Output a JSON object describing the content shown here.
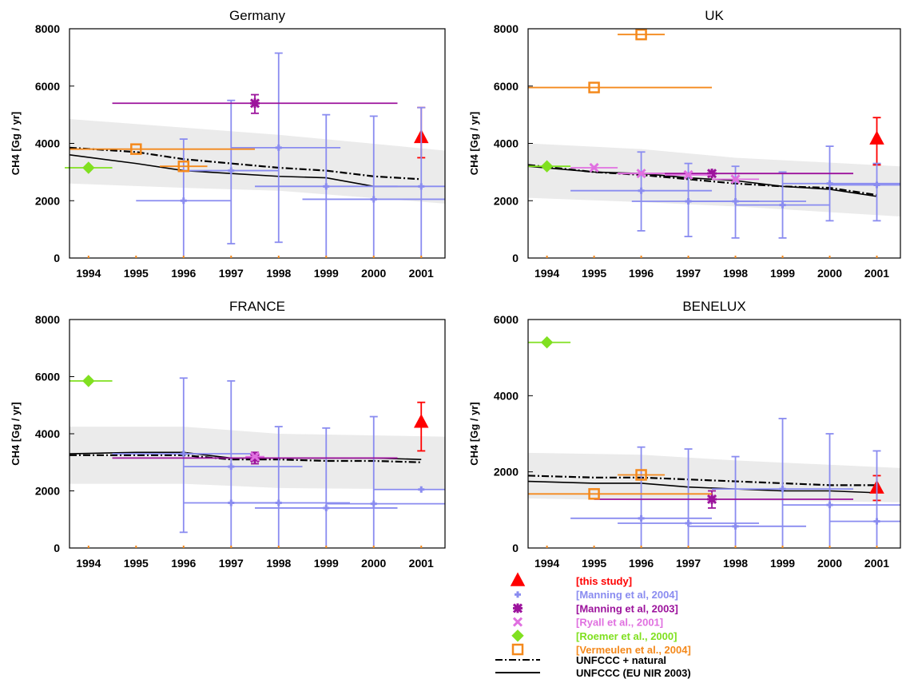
{
  "chart_data": [
    {
      "type": "scatter",
      "title": "Germany",
      "ylabel": "CH4 [Gg / yr]",
      "ylim": [
        0,
        8000
      ],
      "xlim": [
        1993.6,
        2001.5
      ],
      "x_ticks": [
        "1994",
        "1995",
        "1996",
        "1997",
        "1998",
        "1999",
        "2000",
        "2001"
      ],
      "y_ticks": [
        "0",
        "2000",
        "4000",
        "6000",
        "8000"
      ],
      "series": [
        {
          "key": "this_study",
          "points": [
            {
              "x": 2001,
              "y": 4200,
              "ylo": 3500,
              "yhi": 5250
            }
          ]
        },
        {
          "key": "manning_2004",
          "points": [
            {
              "x": 1996,
              "y": 2000,
              "xlo": 1995,
              "xhi": 1997,
              "ylo": 0,
              "yhi": 4150
            },
            {
              "x": 1997,
              "y": 3050,
              "xlo": 1996,
              "xhi": 1998,
              "ylo": 500,
              "yhi": 5500
            },
            {
              "x": 1998,
              "y": 3850,
              "xlo": 1997,
              "xhi": 1999.3,
              "ylo": 550,
              "yhi": 7150
            },
            {
              "x": 1999,
              "y": 2500,
              "xlo": 1997.5,
              "xhi": 2000.5,
              "ylo": 0,
              "yhi": 5000
            },
            {
              "x": 2000,
              "y": 2050,
              "xlo": 1998.5,
              "xhi": 2001.5,
              "ylo": 0,
              "yhi": 4950
            },
            {
              "x": 2001,
              "y": 2500,
              "xlo": 2000,
              "xhi": 2001.5,
              "ylo": 0,
              "yhi": 5250
            }
          ]
        },
        {
          "key": "manning_2003",
          "points": [
            {
              "x": 1997.5,
              "y": 5400,
              "xlo": 1994.5,
              "xhi": 2000.5,
              "ylo": 5050,
              "yhi": 5700
            }
          ]
        },
        {
          "key": "roemer_2000",
          "points": [
            {
              "x": 1994,
              "y": 3150,
              "xlo": 1993.5,
              "xhi": 1994.5
            }
          ]
        },
        {
          "key": "vermeulen_2004",
          "points": [
            {
              "x": 1995,
              "y": 3800,
              "xlo": 1993.6,
              "xhi": 1997.5
            },
            {
              "x": 1996,
              "y": 3200,
              "xlo": 1995.5,
              "xhi": 1996.5
            }
          ]
        }
      ],
      "unfccc_natural": [
        {
          "x": 1993.6,
          "y": 3850
        },
        {
          "x": 1995,
          "y": 3700
        },
        {
          "x": 1996,
          "y": 3450
        },
        {
          "x": 1997,
          "y": 3300
        },
        {
          "x": 1998,
          "y": 3150
        },
        {
          "x": 1999,
          "y": 3050
        },
        {
          "x": 2000,
          "y": 2850
        },
        {
          "x": 2001,
          "y": 2750
        }
      ],
      "unfccc_nir": [
        {
          "x": 1993.6,
          "y": 3600
        },
        {
          "x": 1995,
          "y": 3300
        },
        {
          "x": 1996,
          "y": 3050
        },
        {
          "x": 1997,
          "y": 2950
        },
        {
          "x": 1998,
          "y": 2850
        },
        {
          "x": 1999,
          "y": 2800
        },
        {
          "x": 2000,
          "y": 2500
        },
        {
          "x": 2001,
          "y": 2500
        }
      ],
      "band_upper": [
        {
          "x": 1993.6,
          "y": 4850
        },
        {
          "x": 1996,
          "y": 4550
        },
        {
          "x": 1998,
          "y": 4300
        },
        {
          "x": 2001.5,
          "y": 3750
        }
      ],
      "band_lower": [
        {
          "x": 1993.6,
          "y": 2600
        },
        {
          "x": 1996,
          "y": 2450
        },
        {
          "x": 1998,
          "y": 2350
        },
        {
          "x": 2001.5,
          "y": 1900
        }
      ]
    },
    {
      "type": "scatter",
      "title": "UK",
      "ylabel": "CH4 [Gg / yr]",
      "ylim": [
        0,
        8000
      ],
      "xlim": [
        1993.6,
        2001.5
      ],
      "x_ticks": [
        "1994",
        "1995",
        "1996",
        "1997",
        "1998",
        "1999",
        "2000",
        "2001"
      ],
      "y_ticks": [
        "0",
        "2000",
        "4000",
        "6000",
        "8000"
      ],
      "series": [
        {
          "key": "this_study",
          "points": [
            {
              "x": 2001,
              "y": 4150,
              "ylo": 3250,
              "yhi": 4900
            }
          ]
        },
        {
          "key": "manning_2004",
          "points": [
            {
              "x": 1996,
              "y": 2350,
              "xlo": 1994.5,
              "xhi": 1997.5,
              "ylo": 950,
              "yhi": 3700
            },
            {
              "x": 1997,
              "y": 1980,
              "xlo": 1995.8,
              "xhi": 1998.5,
              "ylo": 750,
              "yhi": 3300
            },
            {
              "x": 1998,
              "y": 1980,
              "xlo": 1997,
              "xhi": 1999.5,
              "ylo": 700,
              "yhi": 3200
            },
            {
              "x": 1999,
              "y": 1850,
              "xlo": 1998,
              "xhi": 2000,
              "ylo": 700,
              "yhi": 3000
            },
            {
              "x": 2000,
              "y": 2600,
              "xlo": 1999,
              "xhi": 2001.5,
              "ylo": 1300,
              "yhi": 3900
            },
            {
              "x": 2001,
              "y": 2550,
              "xlo": 2000,
              "xhi": 2001.5,
              "ylo": 1300,
              "yhi": 3300
            }
          ]
        },
        {
          "key": "manning_2003",
          "points": [
            {
              "x": 1997.5,
              "y": 2950,
              "xlo": 1995.5,
              "xhi": 2000.5
            }
          ]
        },
        {
          "key": "ryall_2001",
          "points": [
            {
              "x": 1995,
              "y": 3150,
              "xlo": 1994.5,
              "xhi": 1995.5
            },
            {
              "x": 1996,
              "y": 2950,
              "xlo": 1995.5,
              "xhi": 1996.5
            },
            {
              "x": 1997,
              "y": 2900,
              "xlo": 1996.5,
              "xhi": 1997.5
            },
            {
              "x": 1998,
              "y": 2750,
              "xlo": 1997.5,
              "xhi": 1998.5
            }
          ]
        },
        {
          "key": "roemer_2000",
          "points": [
            {
              "x": 1994,
              "y": 3200,
              "xlo": 1993.6,
              "xhi": 1994.5
            }
          ]
        },
        {
          "key": "vermeulen_2004",
          "points": [
            {
              "x": 1995,
              "y": 5950,
              "xlo": 1993.6,
              "xhi": 1997.5
            },
            {
              "x": 1996,
              "y": 7800,
              "xlo": 1995.5,
              "xhi": 1996.5
            }
          ]
        }
      ],
      "unfccc_natural": [
        {
          "x": 1993.6,
          "y": 3250
        },
        {
          "x": 1995,
          "y": 3000
        },
        {
          "x": 1996,
          "y": 2900
        },
        {
          "x": 1997,
          "y": 2750
        },
        {
          "x": 1998,
          "y": 2600
        },
        {
          "x": 1999,
          "y": 2500
        },
        {
          "x": 2000,
          "y": 2450
        },
        {
          "x": 2001,
          "y": 2200
        }
      ],
      "unfccc_nir": [
        {
          "x": 1993.6,
          "y": 3200
        },
        {
          "x": 1995,
          "y": 3000
        },
        {
          "x": 1996,
          "y": 2950
        },
        {
          "x": 1997,
          "y": 2800
        },
        {
          "x": 1998,
          "y": 2700
        },
        {
          "x": 1999,
          "y": 2500
        },
        {
          "x": 2000,
          "y": 2400
        },
        {
          "x": 2001,
          "y": 2150
        }
      ],
      "band_upper": [
        {
          "x": 1993.6,
          "y": 4000
        },
        {
          "x": 1996,
          "y": 3800
        },
        {
          "x": 1998,
          "y": 3500
        },
        {
          "x": 2001.5,
          "y": 3200
        }
      ],
      "band_lower": [
        {
          "x": 1993.6,
          "y": 2100
        },
        {
          "x": 1996,
          "y": 1950
        },
        {
          "x": 1998,
          "y": 1800
        },
        {
          "x": 2001.5,
          "y": 1450
        }
      ]
    },
    {
      "type": "scatter",
      "title": "FRANCE",
      "ylabel": "CH4 [Gg / yr]",
      "ylim": [
        0,
        8000
      ],
      "xlim": [
        1993.6,
        2001.5
      ],
      "x_ticks": [
        "1994",
        "1995",
        "1996",
        "1997",
        "1998",
        "1999",
        "2000",
        "2001"
      ],
      "y_ticks": [
        "0",
        "2000",
        "4000",
        "6000",
        "8000"
      ],
      "series": [
        {
          "key": "this_study",
          "points": [
            {
              "x": 2001,
              "y": 4400,
              "ylo": 3400,
              "yhi": 5100
            }
          ]
        },
        {
          "key": "manning_2004",
          "points": [
            {
              "x": 1996,
              "y": 3300,
              "xlo": 1994.5,
              "xhi": 1997.5,
              "ylo": 550,
              "yhi": 5950
            },
            {
              "x": 1997,
              "y": 2850,
              "xlo": 1996,
              "xhi": 1998.5,
              "ylo": 0,
              "yhi": 5850
            },
            {
              "x": 1997,
              "y": 1580,
              "xlo": 1996,
              "xhi": 1998,
              "ylo": 0,
              "yhi": 0
            },
            {
              "x": 1998,
              "y": 1580,
              "xlo": 1997,
              "xhi": 1999.5,
              "ylo": 0,
              "yhi": 4250
            },
            {
              "x": 1999,
              "y": 1400,
              "xlo": 1997.5,
              "xhi": 2000.5,
              "ylo": 0,
              "yhi": 4200
            },
            {
              "x": 2000,
              "y": 1550,
              "xlo": 1999,
              "xhi": 2001.5,
              "ylo": 0,
              "yhi": 4600
            },
            {
              "x": 2001,
              "y": 2050,
              "xlo": 2000,
              "xhi": 2001.5,
              "ylo": 0,
              "yhi": 0
            }
          ]
        },
        {
          "key": "manning_2003",
          "points": [
            {
              "x": 1997.5,
              "y": 3150,
              "xlo": 1994.5,
              "xhi": 2000.5,
              "ylo": 2950,
              "yhi": 3350
            }
          ]
        },
        {
          "key": "ryall_2001",
          "points": [
            {
              "x": 1997.5,
              "y": 3200,
              "xlo": 1997.3,
              "xhi": 1997.7
            }
          ]
        },
        {
          "key": "roemer_2000",
          "points": [
            {
              "x": 1994,
              "y": 5850,
              "xlo": 1993.6,
              "xhi": 1994.5
            }
          ]
        }
      ],
      "unfccc_natural": [
        {
          "x": 1993.6,
          "y": 3250
        },
        {
          "x": 1995,
          "y": 3250
        },
        {
          "x": 1996,
          "y": 3250
        },
        {
          "x": 1997,
          "y": 3100
        },
        {
          "x": 1998,
          "y": 3100
        },
        {
          "x": 1999,
          "y": 3050
        },
        {
          "x": 2000,
          "y": 3050
        },
        {
          "x": 2001,
          "y": 3000
        }
      ],
      "unfccc_nir": [
        {
          "x": 1993.6,
          "y": 3300
        },
        {
          "x": 1995,
          "y": 3350
        },
        {
          "x": 1996,
          "y": 3350
        },
        {
          "x": 1997,
          "y": 3150
        },
        {
          "x": 1998,
          "y": 3150
        },
        {
          "x": 1999,
          "y": 3150
        },
        {
          "x": 2000,
          "y": 3150
        },
        {
          "x": 2001,
          "y": 3100
        }
      ],
      "band_upper": [
        {
          "x": 1993.6,
          "y": 4250
        },
        {
          "x": 1996,
          "y": 4250
        },
        {
          "x": 1998,
          "y": 4000
        },
        {
          "x": 2001.5,
          "y": 3900
        }
      ],
      "band_lower": [
        {
          "x": 1993.6,
          "y": 2250
        },
        {
          "x": 1996,
          "y": 2250
        },
        {
          "x": 1998,
          "y": 2100
        },
        {
          "x": 2001.5,
          "y": 2050
        }
      ]
    },
    {
      "type": "scatter",
      "title": "BENELUX",
      "ylabel": "CH4 [Gg / yr]",
      "ylim": [
        0,
        6000
      ],
      "xlim": [
        1993.6,
        2001.5
      ],
      "x_ticks": [
        "1994",
        "1995",
        "1996",
        "1997",
        "1998",
        "1999",
        "2000",
        "2001"
      ],
      "y_ticks": [
        "0",
        "2000",
        "4000",
        "6000"
      ],
      "series": [
        {
          "key": "this_study",
          "points": [
            {
              "x": 2001,
              "y": 1570,
              "ylo": 1250,
              "yhi": 1900
            }
          ]
        },
        {
          "key": "manning_2004",
          "points": [
            {
              "x": 1996,
              "y": 780,
              "xlo": 1994.5,
              "xhi": 1997.5,
              "ylo": 0,
              "yhi": 2650
            },
            {
              "x": 1997,
              "y": 650,
              "xlo": 1995.5,
              "xhi": 1998.5,
              "ylo": 0,
              "yhi": 2600
            },
            {
              "x": 1998,
              "y": 570,
              "xlo": 1997,
              "xhi": 1999.5,
              "ylo": 0,
              "yhi": 2400
            },
            {
              "x": 1999,
              "y": 1550,
              "xlo": 1997.5,
              "xhi": 2000.5,
              "ylo": 0,
              "yhi": 3400
            },
            {
              "x": 2000,
              "y": 1130,
              "xlo": 1999,
              "xhi": 2001.5,
              "ylo": 0,
              "yhi": 3000
            },
            {
              "x": 2001,
              "y": 700,
              "xlo": 2000,
              "xhi": 2001.5,
              "ylo": 0,
              "yhi": 2550
            }
          ]
        },
        {
          "key": "manning_2003",
          "points": [
            {
              "x": 1997.5,
              "y": 1280,
              "xlo": 1995,
              "xhi": 2000.5,
              "ylo": 1050,
              "yhi": 1500
            }
          ]
        },
        {
          "key": "roemer_2000",
          "points": [
            {
              "x": 1994,
              "y": 5400,
              "xlo": 1993.6,
              "xhi": 1994.5
            }
          ]
        },
        {
          "key": "vermeulen_2004",
          "points": [
            {
              "x": 1995,
              "y": 1420,
              "xlo": 1993.6,
              "xhi": 1997.5
            },
            {
              "x": 1996,
              "y": 1920,
              "xlo": 1995.5,
              "xhi": 1996.5
            }
          ]
        }
      ],
      "unfccc_natural": [
        {
          "x": 1993.6,
          "y": 1900
        },
        {
          "x": 1995,
          "y": 1850
        },
        {
          "x": 1996,
          "y": 1850
        },
        {
          "x": 1997,
          "y": 1800
        },
        {
          "x": 1998,
          "y": 1750
        },
        {
          "x": 1999,
          "y": 1700
        },
        {
          "x": 2000,
          "y": 1650
        },
        {
          "x": 2001,
          "y": 1650
        }
      ],
      "unfccc_nir": [
        {
          "x": 1993.6,
          "y": 1750
        },
        {
          "x": 1995,
          "y": 1700
        },
        {
          "x": 1996,
          "y": 1700
        },
        {
          "x": 1997,
          "y": 1600
        },
        {
          "x": 1998,
          "y": 1550
        },
        {
          "x": 1999,
          "y": 1500
        },
        {
          "x": 2000,
          "y": 1500
        },
        {
          "x": 2001,
          "y": 1450
        }
      ],
      "band_upper": [
        {
          "x": 1993.6,
          "y": 2500
        },
        {
          "x": 1996,
          "y": 2450
        },
        {
          "x": 1998,
          "y": 2300
        },
        {
          "x": 2001.5,
          "y": 2100
        }
      ],
      "band_lower": [
        {
          "x": 1993.6,
          "y": 1300
        },
        {
          "x": 1996,
          "y": 1250
        },
        {
          "x": 1998,
          "y": 1250
        },
        {
          "x": 2001.5,
          "y": 1200
        }
      ]
    }
  ],
  "legend": {
    "items": [
      {
        "key": "this_study",
        "label": "[this study]",
        "color": "#ff0000",
        "symbol": "triangle-up-icon"
      },
      {
        "key": "manning_2004",
        "label": "[Manning et al, 2004]",
        "color": "#8a8cf0",
        "symbol": "plus-icon"
      },
      {
        "key": "manning_2003",
        "label": "[Manning et al, 2003]",
        "color": "#9c139c",
        "symbol": "asterisk-icon"
      },
      {
        "key": "ryall_2001",
        "label": "[Ryall et al., 2001]",
        "color": "#e070e0",
        "symbol": "cross-icon"
      },
      {
        "key": "roemer_2000",
        "label": "[Roemer et al., 2000]",
        "color": "#80e020",
        "symbol": "diamond-icon"
      },
      {
        "key": "vermeulen_2004",
        "label": "[Vermeulen et al., 2004]",
        "color": "#f4891c",
        "symbol": "square-icon"
      }
    ],
    "lines": [
      {
        "key": "unfccc_natural",
        "label": "UNFCCC + natural",
        "style": "dash-dot"
      },
      {
        "key": "unfccc_nir",
        "label": "UNFCCC (EU NIR 2003)",
        "style": "solid"
      }
    ]
  },
  "colors": {
    "band": "#ebebeb",
    "orange_tick": "#f4891c"
  }
}
